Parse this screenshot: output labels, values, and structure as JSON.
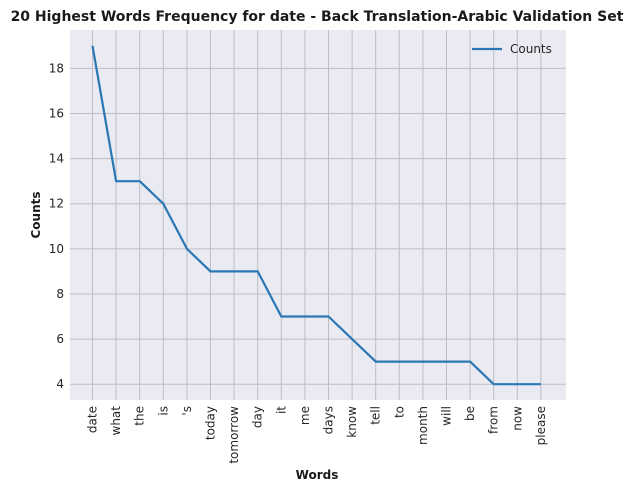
{
  "chart_data": {
    "type": "line",
    "title": "20 Highest Words Frequency for date - Back Translation-Arabic Validation Set",
    "xlabel": "Words",
    "ylabel": "Counts",
    "categories": [
      "date",
      "what",
      "the",
      "is",
      "'s",
      "today",
      "tomorrow",
      "day",
      "it",
      "me",
      "days",
      "know",
      "tell",
      "to",
      "month",
      "will",
      "be",
      "from",
      "now",
      "please"
    ],
    "series": [
      {
        "name": "Counts",
        "values": [
          19,
          13,
          13,
          12,
          10,
          9,
          9,
          9,
          7,
          7,
          7,
          6,
          5,
          5,
          5,
          5,
          5,
          4,
          4,
          4
        ]
      }
    ],
    "ylim": [
      3.3,
      19.7
    ],
    "yticks": [
      4,
      6,
      8,
      10,
      12,
      14,
      16,
      18
    ],
    "grid": true,
    "legend_position": "top-right",
    "colors": {
      "line": "#2a77b4",
      "plot_background": "#eaeaf2",
      "grid": "#bdbdc3"
    }
  }
}
